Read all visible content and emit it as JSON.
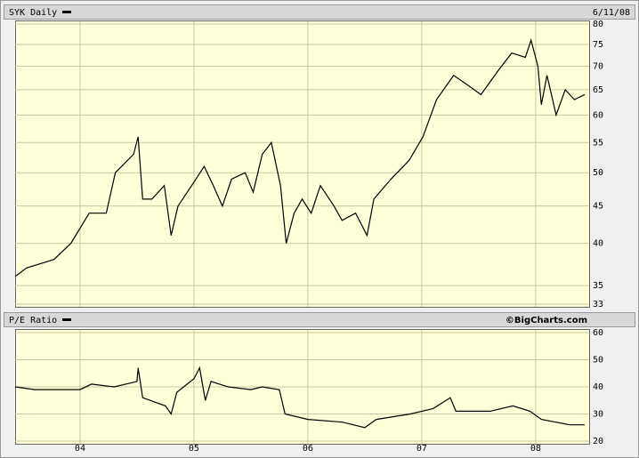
{
  "chart_data": [
    {
      "type": "line",
      "title": "SYK Daily",
      "date": "6/11/08",
      "log": true,
      "grid": true,
      "color": "#000000",
      "x": [
        3.43,
        3.53,
        3.77,
        3.92,
        4.08,
        4.23,
        4.31,
        4.47,
        4.51,
        4.55,
        4.63,
        4.74,
        4.8,
        4.86,
        4.98,
        5.09,
        5.17,
        5.25,
        5.33,
        5.45,
        5.52,
        5.6,
        5.68,
        5.76,
        5.81,
        5.88,
        5.95,
        6.03,
        6.11,
        6.23,
        6.3,
        6.42,
        6.52,
        6.58,
        6.73,
        6.89,
        7.01,
        7.13,
        7.28,
        7.4,
        7.52,
        7.67,
        7.79,
        7.91,
        7.96,
        8.02,
        8.05,
        8.1,
        8.18,
        8.26,
        8.34,
        8.43
      ],
      "values": [
        36,
        37,
        38,
        40,
        44,
        44,
        50,
        53,
        56,
        46,
        46,
        48,
        41,
        45,
        48,
        51,
        48,
        45,
        49,
        50,
        47,
        53,
        55,
        48,
        40,
        44,
        46,
        44,
        48,
        45,
        43,
        44,
        41,
        46,
        49,
        52,
        56,
        63,
        68,
        66,
        64,
        69,
        73,
        72,
        76,
        70,
        62,
        68,
        60,
        65,
        63,
        64
      ],
      "xlim": [
        3.43,
        8.47
      ],
      "xticks": [
        4,
        5,
        6,
        7,
        8
      ],
      "ylim": [
        33,
        80
      ],
      "yticks": [
        33,
        35,
        40,
        45,
        50,
        55,
        60,
        65,
        70,
        75,
        80
      ]
    },
    {
      "type": "line",
      "title": "P/E Ratio",
      "source": "©BigCharts.com",
      "grid": true,
      "color": "#000000",
      "x": [
        3.43,
        3.6,
        3.9,
        4.0,
        4.1,
        4.3,
        4.5,
        4.51,
        4.55,
        4.75,
        4.8,
        4.85,
        5.0,
        5.05,
        5.1,
        5.15,
        5.3,
        5.5,
        5.6,
        5.75,
        5.8,
        6.0,
        6.3,
        6.5,
        6.6,
        6.9,
        7.1,
        7.25,
        7.3,
        7.6,
        7.8,
        7.95,
        8.05,
        8.3,
        8.43
      ],
      "values": [
        40,
        39,
        39,
        39,
        41,
        40,
        42,
        47,
        36,
        33,
        30,
        38,
        43,
        47,
        35,
        42,
        40,
        39,
        40,
        39,
        30,
        28,
        27,
        25,
        28,
        30,
        32,
        36,
        31,
        31,
        33,
        31,
        28,
        26,
        26
      ],
      "xlim": [
        3.43,
        8.47
      ],
      "xticks": [
        {
          "value": 4,
          "label": "04"
        },
        {
          "value": 5,
          "label": "05"
        },
        {
          "value": 6,
          "label": "06"
        },
        {
          "value": 7,
          "label": "07"
        },
        {
          "value": 8,
          "label": "08"
        }
      ],
      "ylim": [
        20,
        60
      ],
      "yticks": [
        20,
        30,
        40,
        50,
        60
      ]
    }
  ]
}
